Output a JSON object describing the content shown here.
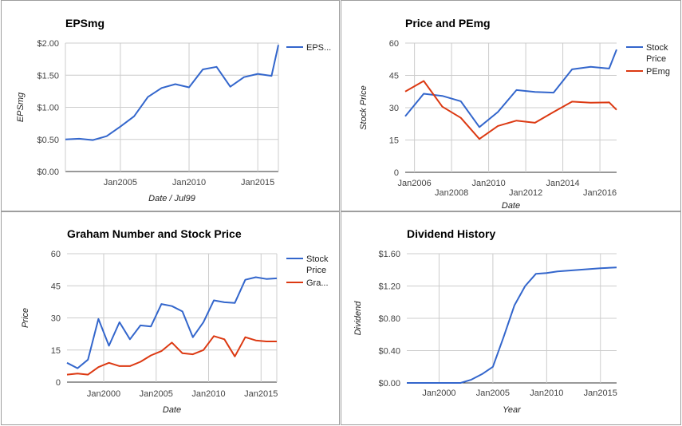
{
  "chart_data": [
    {
      "type": "line",
      "title": "EPSmg",
      "xlabel": "Date / Jul99",
      "ylabel": "EPSmg",
      "x_ticks": [
        "Jan2005",
        "Jan2010",
        "Jan2015"
      ],
      "y_ticks": [
        "$0.00",
        "$0.50",
        "$1.00",
        "$1.50",
        "$2.00"
      ],
      "ylim": [
        0,
        2
      ],
      "grid": true,
      "legend_position": "right",
      "series": [
        {
          "name": "EPS...",
          "color": "#3366cc",
          "x": [
            2001,
            2002,
            2003,
            2004,
            2005,
            2006,
            2007,
            2008,
            2009,
            2010,
            2011,
            2012,
            2013,
            2014,
            2015,
            2016,
            2016.5
          ],
          "y": [
            0.5,
            0.51,
            0.49,
            0.55,
            0.7,
            0.86,
            1.16,
            1.3,
            1.36,
            1.31,
            1.59,
            1.63,
            1.32,
            1.47,
            1.52,
            1.49,
            1.97
          ]
        }
      ]
    },
    {
      "type": "line",
      "title": "Price and PEmg",
      "xlabel": "Date",
      "ylabel": "Stock Price",
      "x_ticks": [
        "Jan2006",
        "Jan2008",
        "Jan2010",
        "Jan2012",
        "Jan2014",
        "Jan2016"
      ],
      "y_ticks": [
        "0",
        "15",
        "30",
        "45",
        "60"
      ],
      "ylim": [
        0,
        60
      ],
      "grid": true,
      "legend_position": "right",
      "series": [
        {
          "name": "Stock Price",
          "color": "#3366cc",
          "x": [
            2005.5,
            2006.5,
            2007.5,
            2008.5,
            2009.5,
            2010.5,
            2011.5,
            2012.5,
            2013.5,
            2014.5,
            2015.5,
            2016.5,
            2016.9
          ],
          "y": [
            26,
            36.5,
            35.5,
            33,
            21,
            28,
            38.2,
            37.3,
            37,
            47.8,
            49,
            48.2,
            57
          ]
        },
        {
          "name": "PEmg",
          "color": "#dc3912",
          "x": [
            2005.5,
            2006.5,
            2007.5,
            2008.5,
            2009.5,
            2010.5,
            2011.5,
            2012.5,
            2013.5,
            2014.5,
            2015.5,
            2016.5,
            2016.9
          ],
          "y": [
            37.5,
            42.4,
            30.5,
            25.3,
            15.5,
            21.5,
            24,
            23,
            28,
            32.8,
            32.3,
            32.5,
            29
          ]
        }
      ]
    },
    {
      "type": "line",
      "title": "Graham Number and Stock Price",
      "xlabel": "Date",
      "ylabel": "Price",
      "x_ticks": [
        "Jan2000",
        "Jan2005",
        "Jan2010",
        "Jan2015"
      ],
      "y_ticks": [
        "0",
        "15",
        "30",
        "45",
        "60"
      ],
      "ylim": [
        0,
        60
      ],
      "grid": true,
      "legend_position": "right",
      "series": [
        {
          "name": "Stock Price",
          "color": "#3366cc",
          "x": [
            1996.5,
            1997.5,
            1998.5,
            1999.5,
            2000.5,
            2001.5,
            2002.5,
            2003.5,
            2004.5,
            2005.5,
            2006.5,
            2007.5,
            2008.5,
            2009.5,
            2010.5,
            2011.5,
            2012.5,
            2013.5,
            2014.5,
            2015.5,
            2016.5
          ],
          "y": [
            9,
            6.5,
            10.5,
            29.5,
            17,
            28,
            20,
            26.5,
            26,
            36.5,
            35.5,
            33,
            21,
            28,
            38.2,
            37.3,
            37,
            47.8,
            49,
            48.2,
            48.5
          ]
        },
        {
          "name": "Gra...",
          "color": "#dc3912",
          "x": [
            1996.5,
            1997.5,
            1998.5,
            1999.5,
            2000.5,
            2001.5,
            2002.5,
            2003.5,
            2004.5,
            2005.5,
            2006.5,
            2007.5,
            2008.5,
            2009.5,
            2010.5,
            2011.5,
            2012.5,
            2013.5,
            2014.5,
            2015.5,
            2016.5
          ],
          "y": [
            3.5,
            4,
            3.5,
            7,
            9,
            7.5,
            7.5,
            9.5,
            12.5,
            14.5,
            18.5,
            13.5,
            13,
            15,
            21.5,
            20,
            12,
            21,
            19.5,
            19,
            19
          ]
        }
      ]
    },
    {
      "type": "line",
      "title": "Dividend History",
      "xlabel": "Year",
      "ylabel": "Dividend",
      "x_ticks": [
        "Jan2000",
        "Jan2005",
        "Jan2010",
        "Jan2015"
      ],
      "y_ticks": [
        "$0.00",
        "$0.40",
        "$0.80",
        "$1.20",
        "$1.60"
      ],
      "ylim": [
        0,
        1.6
      ],
      "grid": true,
      "series": [
        {
          "name": "Dividend",
          "color": "#3366cc",
          "x": [
            1997,
            1998,
            1999,
            2000,
            2001,
            2002,
            2003,
            2004,
            2005,
            2006,
            2007,
            2008,
            2009,
            2010,
            2011,
            2012,
            2013,
            2014,
            2015,
            2016.5
          ],
          "y": [
            0,
            0,
            0,
            0,
            0,
            0,
            0.04,
            0.11,
            0.2,
            0.57,
            0.96,
            1.2,
            1.35,
            1.36,
            1.38,
            1.39,
            1.4,
            1.41,
            1.42,
            1.43
          ]
        }
      ]
    }
  ]
}
